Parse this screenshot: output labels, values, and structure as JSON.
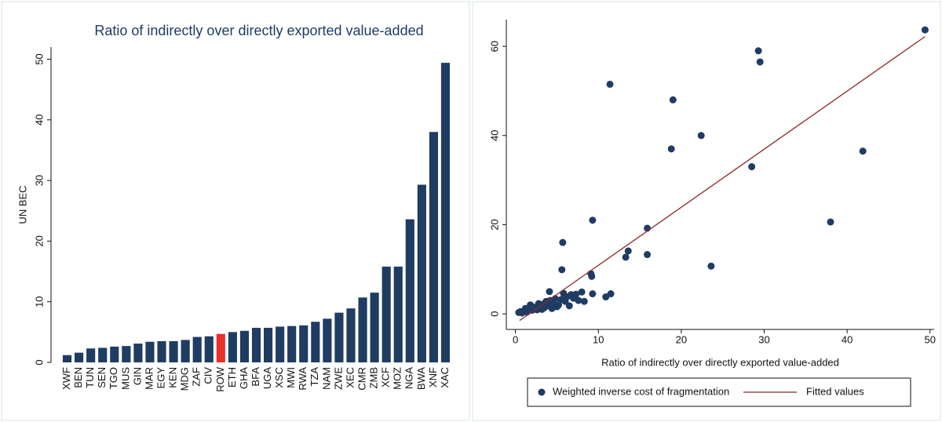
{
  "chart_data": [
    {
      "type": "bar",
      "title": "Ratio of indirectly over directly exported value-added",
      "y_label": "UN BEC",
      "categories": [
        "XWF",
        "BEN",
        "TUN",
        "SEN",
        "TGO",
        "MUS",
        "GIN",
        "MAR",
        "EGY",
        "KEN",
        "MDG",
        "ZAF",
        "CIV",
        "ROW",
        "ETH",
        "GHA",
        "BFA",
        "UGA",
        "XSC",
        "MWI",
        "RWA",
        "TZA",
        "NAM",
        "ZWE",
        "XEC",
        "CMR",
        "ZMB",
        "XCF",
        "MOZ",
        "NGA",
        "BWA",
        "XNF",
        "XAC"
      ],
      "values": [
        1.2,
        1.6,
        2.3,
        2.4,
        2.6,
        2.7,
        3.1,
        3.4,
        3.5,
        3.5,
        3.7,
        4.2,
        4.3,
        4.7,
        5.0,
        5.2,
        5.7,
        5.7,
        5.9,
        6.0,
        6.1,
        6.7,
        7.2,
        8.2,
        8.9,
        10.7,
        11.5,
        15.8,
        15.8,
        23.6,
        29.3,
        38.0,
        49.4
      ],
      "colors": [
        "#1f3c63",
        "#1f3c63",
        "#1f3c63",
        "#1f3c63",
        "#1f3c63",
        "#1f3c63",
        "#1f3c63",
        "#1f3c63",
        "#1f3c63",
        "#1f3c63",
        "#1f3c63",
        "#1f3c63",
        "#1f3c63",
        "#e8312a",
        "#1f3c63",
        "#1f3c63",
        "#1f3c63",
        "#1f3c63",
        "#1f3c63",
        "#1f3c63",
        "#1f3c63",
        "#1f3c63",
        "#1f3c63",
        "#1f3c63",
        "#1f3c63",
        "#1f3c63",
        "#1f3c63",
        "#1f3c63",
        "#1f3c63",
        "#1f3c63",
        "#1f3c63",
        "#1f3c63",
        "#1f3c63"
      ],
      "ylim": [
        0,
        52
      ],
      "yticks": [
        0,
        10,
        20,
        30,
        40,
        50
      ]
    },
    {
      "type": "scatter",
      "x_label": "Ratio of indirectly over directly exported value-added",
      "series": [
        {
          "name": "Weighted inverse cost of fragmentation",
          "color": "#1f3c63",
          "kind": "scatter",
          "x": [
            49.4,
            29.3,
            29.5,
            11.4,
            19,
            22.4,
            18.8,
            41.9,
            28.5,
            9.3,
            38,
            15.9,
            5.7,
            13.6,
            13.3,
            15.9,
            23.6,
            5.6,
            9.1,
            9.2,
            11.5,
            10.9,
            8.0,
            9.3,
            0.4,
            0.6,
            0.8,
            1.0,
            1.2,
            1.4,
            1.6,
            1.8,
            2.0,
            2.2,
            2.4,
            2.6,
            2.8,
            3.0,
            3.2,
            3.4,
            3.5,
            3.7,
            3.9,
            4.1,
            4.2,
            4.4,
            4.6,
            4.8,
            5.0,
            5.2,
            5.5,
            5.8,
            6.0,
            6.2,
            6.5,
            6.7,
            7.0,
            7.3,
            7.6,
            8.3
          ],
          "values": [
            63.7,
            59,
            56.5,
            51.5,
            48,
            40,
            37,
            36.5,
            33,
            21,
            20.6,
            19.2,
            16,
            14.1,
            12.7,
            13.3,
            10.7,
            9.9,
            9,
            8.4,
            4.5,
            3.8,
            4.9,
            4.5,
            0.3,
            0.5,
            0.2,
            0.6,
            1.2,
            0.4,
            1.0,
            2.0,
            0.8,
            1.5,
            1.1,
            0.9,
            2.3,
            1.6,
            1.0,
            2.2,
            1.4,
            2.8,
            1.8,
            5.0,
            3.0,
            1.2,
            2.5,
            3.4,
            1.6,
            2.0,
            3.2,
            4.6,
            2.8,
            3.8,
            1.8,
            4.3,
            3.5,
            4.4,
            3.0,
            2.8
          ]
        },
        {
          "name": "Fitted values",
          "color": "#8b2a2a",
          "kind": "line",
          "x": [
            0.5,
            49.4
          ],
          "values": [
            -1.5,
            62.2
          ]
        }
      ],
      "xlim": [
        -1.1,
        50.5
      ],
      "ylim": [
        -3.5,
        66
      ],
      "xticks": [
        0,
        10,
        20,
        30,
        40,
        50
      ],
      "yticks": [
        0,
        20,
        40,
        60
      ]
    }
  ]
}
